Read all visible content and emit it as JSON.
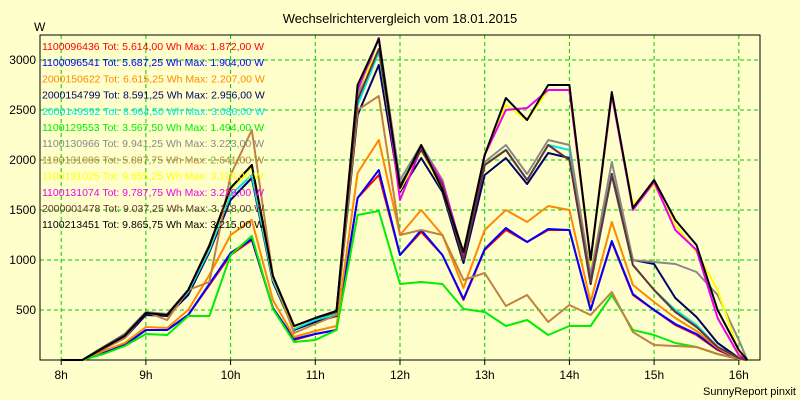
{
  "chart_data": {
    "type": "line",
    "title": "Wechselrichtervergleich vom 18.01.2015",
    "ylabel": "W",
    "footer": "SunnyReport pinxit",
    "ylim": [
      0,
      3250
    ],
    "xlim": [
      7.75,
      16.25
    ],
    "y_ticks": [
      500,
      1000,
      1500,
      2000,
      2500,
      3000
    ],
    "x_ticks": [
      {
        "value": 8,
        "label": "8h"
      },
      {
        "value": 9,
        "label": "9h"
      },
      {
        "value": 10,
        "label": "10h"
      },
      {
        "value": 11,
        "label": "11h"
      },
      {
        "value": 12,
        "label": "12h"
      },
      {
        "value": 13,
        "label": "13h"
      },
      {
        "value": 14,
        "label": "14h"
      },
      {
        "value": 15,
        "label": "15h"
      },
      {
        "value": 16,
        "label": "16h"
      }
    ],
    "grid": true,
    "legend_position": "top-left",
    "x": [
      8.0,
      8.25,
      8.5,
      8.75,
      9.0,
      9.25,
      9.5,
      9.75,
      10.0,
      10.25,
      10.5,
      10.75,
      11.0,
      11.25,
      11.5,
      11.75,
      12.0,
      12.25,
      12.5,
      12.75,
      13.0,
      13.25,
      13.5,
      13.75,
      14.0,
      14.25,
      14.5,
      14.75,
      15.0,
      15.25,
      15.5,
      15.75,
      16.0,
      16.1
    ],
    "series": [
      {
        "name": "1100096436",
        "label": "1100096436 Tot: 5.614,00 Wh Max: 1.872,00 W",
        "color": "#ff0000",
        "values": [
          0,
          0,
          80,
          150,
          300,
          300,
          450,
          750,
          1050,
          1200,
          520,
          200,
          260,
          300,
          1620,
          1850,
          1050,
          1280,
          1050,
          600,
          1100,
          1300,
          1180,
          1300,
          1300,
          500,
          1180,
          650,
          500,
          350,
          250,
          100,
          10,
          0
        ]
      },
      {
        "name": "1100096541",
        "label": "1100096541 Tot: 5.687,25 Wh Max: 1.904,00 W",
        "color": "#0000ff",
        "values": [
          0,
          0,
          80,
          150,
          300,
          300,
          450,
          760,
          1070,
          1210,
          520,
          210,
          260,
          300,
          1620,
          1900,
          1050,
          1300,
          1050,
          610,
          1110,
          1320,
          1180,
          1310,
          1300,
          500,
          1190,
          660,
          500,
          360,
          260,
          110,
          10,
          0
        ]
      },
      {
        "name": "2000150622",
        "label": "2000150622 Tot: 6.615,25 Wh Max: 2.207,00 W",
        "color": "#ff8800",
        "values": [
          0,
          0,
          90,
          170,
          330,
          320,
          500,
          850,
          1250,
          1400,
          600,
          230,
          290,
          340,
          1870,
          2200,
          1250,
          1500,
          1250,
          720,
          1300,
          1500,
          1380,
          1540,
          1500,
          580,
          1380,
          750,
          580,
          420,
          290,
          120,
          10,
          0
        ]
      },
      {
        "name": "2000154799",
        "label": "2000154799 Tot: 8.591,25 Wh Max: 2.956,00 W",
        "color": "#000066",
        "values": [
          0,
          0,
          110,
          220,
          450,
          440,
          650,
          1080,
          1600,
          1820,
          780,
          300,
          380,
          440,
          2450,
          2950,
          1680,
          2020,
          1680,
          970,
          1850,
          2020,
          1760,
          2070,
          2020,
          760,
          1860,
          1000,
          960,
          620,
          430,
          170,
          20,
          0
        ]
      },
      {
        "name": "2000149392",
        "label": "2000149392 Tot: 8.964,50 Wh Max: 3.086,00 W",
        "color": "#00e5e5",
        "values": [
          0,
          0,
          130,
          260,
          480,
          450,
          680,
          1100,
          1650,
          1850,
          800,
          310,
          400,
          460,
          2550,
          3080,
          1750,
          2100,
          1750,
          1050,
          1950,
          2100,
          1800,
          2150,
          2100,
          780,
          1850,
          950,
          700,
          500,
          350,
          130,
          20,
          0
        ]
      },
      {
        "name": "1100129553",
        "label": "1100129553 Tot: 3.567,50 Wh Max: 1.494,00 W",
        "color": "#00ee00",
        "values": [
          0,
          0,
          60,
          140,
          260,
          250,
          440,
          440,
          1050,
          1240,
          510,
          180,
          200,
          300,
          1450,
          1490,
          760,
          780,
          760,
          510,
          480,
          340,
          400,
          250,
          340,
          340,
          650,
          300,
          250,
          170,
          130,
          60,
          10,
          0
        ]
      },
      {
        "name": "1100130966",
        "label": "1100130966 Tot: 9.941,25 Wh Max: 3.223,00 W",
        "color": "#888888",
        "values": [
          0,
          0,
          130,
          260,
          480,
          460,
          700,
          1150,
          1700,
          1950,
          820,
          330,
          420,
          480,
          2650,
          3220,
          1800,
          2150,
          1800,
          1050,
          1980,
          2150,
          1860,
          2200,
          2150,
          850,
          1980,
          1000,
          980,
          960,
          880,
          650,
          200,
          0
        ]
      },
      {
        "name": "1100131006",
        "label": "1100131006 Tot: 5.807,75 Wh Max: 2.641,00 W",
        "color": "#c08040",
        "values": [
          0,
          0,
          110,
          220,
          480,
          400,
          700,
          780,
          1850,
          2300,
          840,
          270,
          360,
          450,
          2500,
          2640,
          1250,
          1300,
          1250,
          800,
          870,
          540,
          650,
          380,
          550,
          450,
          680,
          280,
          150,
          140,
          130,
          60,
          10,
          0
        ]
      },
      {
        "name": "1100131025",
        "label": "1100131025 Tot: 9.655,25 Wh Max: 3.118,00 W",
        "color": "#ffff00",
        "values": [
          0,
          0,
          120,
          240,
          470,
          450,
          700,
          1130,
          1700,
          1930,
          830,
          330,
          420,
          480,
          2700,
          3110,
          1700,
          2100,
          1700,
          1050,
          2050,
          2550,
          2400,
          2700,
          2700,
          960,
          2650,
          1550,
          1750,
          1350,
          1080,
          700,
          80,
          0
        ]
      },
      {
        "name": "1100131074",
        "label": "1100131074 Tot: 9.787,75 Wh Max: 3.229,00 W",
        "color": "#ee00ee",
        "values": [
          0,
          0,
          120,
          240,
          470,
          450,
          700,
          1140,
          1720,
          1950,
          840,
          340,
          420,
          490,
          2700,
          3220,
          1600,
          2120,
          1780,
          1050,
          2050,
          2500,
          2520,
          2700,
          2700,
          1000,
          2650,
          1500,
          1780,
          1300,
          1100,
          420,
          50,
          0
        ]
      },
      {
        "name": "2000001478",
        "label": "2000001478 Tot: 9.037,25 Wh Max: 3.118,00 W",
        "color": "#663333",
        "values": [
          0,
          0,
          130,
          250,
          470,
          450,
          700,
          1150,
          1720,
          1950,
          840,
          340,
          420,
          480,
          2600,
          3110,
          1750,
          2100,
          1750,
          1000,
          1950,
          2100,
          1800,
          2150,
          2000,
          780,
          1850,
          950,
          700,
          480,
          330,
          130,
          20,
          0
        ]
      },
      {
        "name": "1100213451",
        "label": "1100213451 Tot: 9.865,75 Wh Max: 3.215,00 W",
        "color": "#000000",
        "values": [
          0,
          0,
          120,
          240,
          470,
          450,
          700,
          1140,
          1720,
          1950,
          840,
          340,
          420,
          490,
          2750,
          3210,
          1720,
          2150,
          1700,
          1080,
          2050,
          2620,
          2400,
          2750,
          2750,
          1000,
          2680,
          1520,
          1800,
          1400,
          1150,
          500,
          100,
          0
        ]
      }
    ]
  }
}
